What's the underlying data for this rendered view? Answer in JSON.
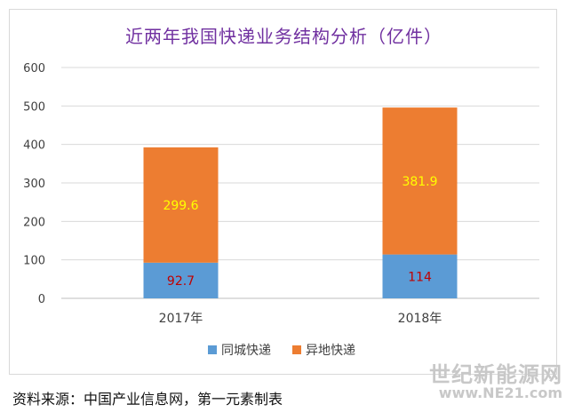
{
  "chart_data": {
    "type": "bar",
    "stacked": true,
    "title": "近两年我国快递业务结构分析（亿件）",
    "categories": [
      "2017年",
      "2018年"
    ],
    "series": [
      {
        "name": "同城快递",
        "values": [
          92.7,
          114
        ],
        "color": "#5b9bd5",
        "label_color": "#c00000"
      },
      {
        "name": "异地快递",
        "values": [
          299.6,
          381.9
        ],
        "color": "#ed7d31",
        "label_color": "#ffff00"
      }
    ],
    "ylim": [
      0,
      600
    ],
    "yticks": [
      "0",
      "100",
      "200",
      "300",
      "400",
      "500",
      "600"
    ],
    "grid": true,
    "legend_position": "bottom"
  },
  "source_note": "资料来源：中国产业信息网，第一元素制表",
  "watermark": {
    "text": "世纪新能源网",
    "url": "www.NE21.com"
  }
}
